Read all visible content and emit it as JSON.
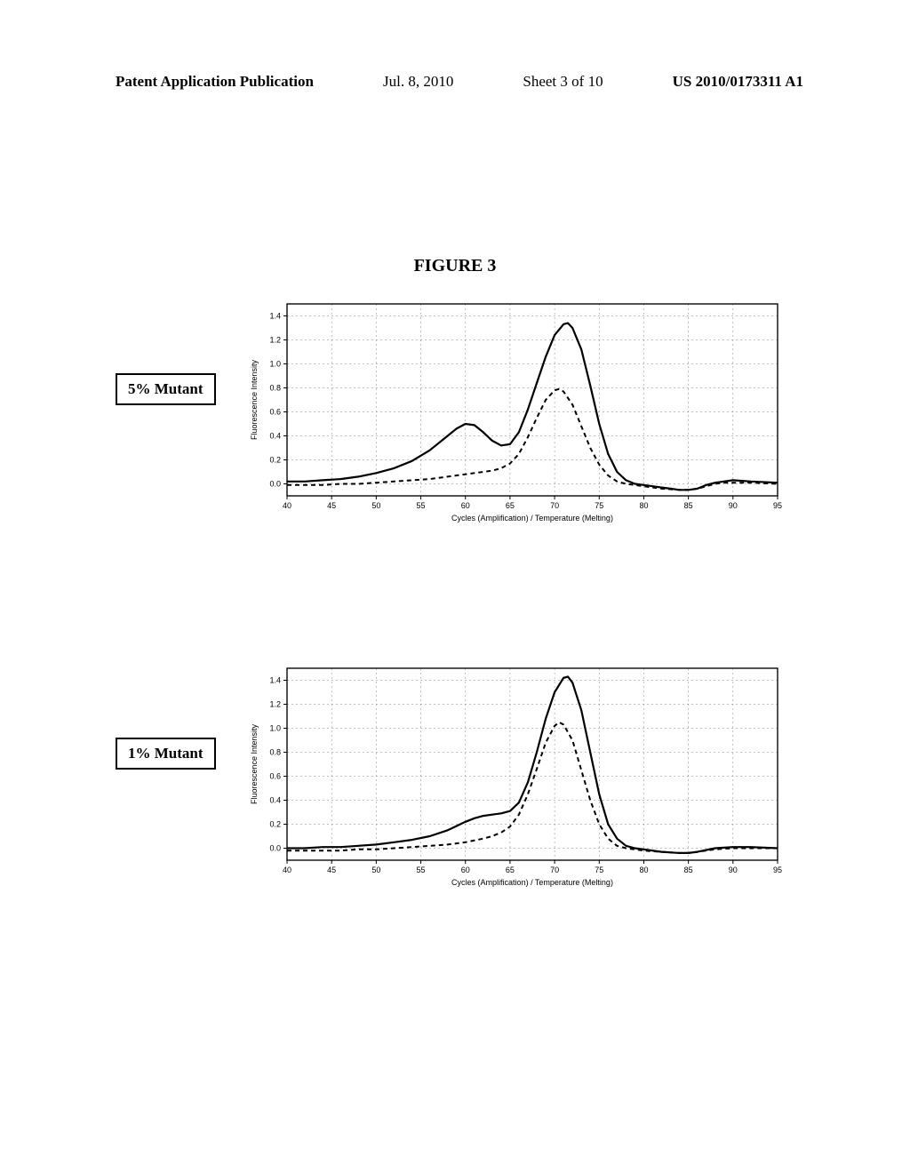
{
  "header": {
    "left": "Patent Application Publication",
    "date": "Jul. 8, 2010",
    "sheet": "Sheet 3 of 10",
    "pubno": "US 2010/0173311 A1"
  },
  "figure_title": "FIGURE 3",
  "panels": [
    {
      "box_label": "5% Mutant",
      "chart": {
        "type": "line",
        "x_label": "Cycles (Amplification) / Temperature (Melting)",
        "y_label": "Fluorescence Intensity",
        "xlim": [
          40,
          95
        ],
        "ylim": [
          -0.1,
          1.5
        ],
        "xticks": [
          40,
          45,
          50,
          55,
          60,
          65,
          70,
          75,
          80,
          85,
          90,
          95
        ],
        "yticks": [
          0.0,
          0.2,
          0.4,
          0.6,
          0.8,
          1.0,
          1.2,
          1.4
        ],
        "background": "#ffffff",
        "grid_color": "#808080",
        "border_color": "#000000",
        "series": [
          {
            "name": "solid",
            "color": "#000000",
            "dash": "none",
            "width": 2.2,
            "points": [
              [
                40,
                0.02
              ],
              [
                42,
                0.02
              ],
              [
                44,
                0.03
              ],
              [
                46,
                0.04
              ],
              [
                48,
                0.06
              ],
              [
                50,
                0.09
              ],
              [
                52,
                0.13
              ],
              [
                54,
                0.19
              ],
              [
                56,
                0.28
              ],
              [
                58,
                0.4
              ],
              [
                59,
                0.46
              ],
              [
                60,
                0.5
              ],
              [
                61,
                0.49
              ],
              [
                62,
                0.43
              ],
              [
                63,
                0.36
              ],
              [
                64,
                0.32
              ],
              [
                65,
                0.33
              ],
              [
                66,
                0.43
              ],
              [
                67,
                0.62
              ],
              [
                68,
                0.84
              ],
              [
                69,
                1.06
              ],
              [
                70,
                1.24
              ],
              [
                71,
                1.33
              ],
              [
                71.5,
                1.34
              ],
              [
                72,
                1.3
              ],
              [
                73,
                1.12
              ],
              [
                74,
                0.82
              ],
              [
                75,
                0.5
              ],
              [
                76,
                0.25
              ],
              [
                77,
                0.1
              ],
              [
                78,
                0.03
              ],
              [
                79,
                0.0
              ],
              [
                80,
                -0.01
              ],
              [
                81,
                -0.02
              ],
              [
                82,
                -0.03
              ],
              [
                83,
                -0.04
              ],
              [
                84,
                -0.05
              ],
              [
                85,
                -0.05
              ],
              [
                86,
                -0.04
              ],
              [
                87,
                -0.01
              ],
              [
                88,
                0.01
              ],
              [
                89,
                0.02
              ],
              [
                90,
                0.03
              ],
              [
                92,
                0.02
              ],
              [
                95,
                0.01
              ]
            ]
          },
          {
            "name": "dashed",
            "color": "#000000",
            "dash": "5,4",
            "width": 2.0,
            "points": [
              [
                40,
                -0.01
              ],
              [
                42,
                -0.01
              ],
              [
                44,
                -0.01
              ],
              [
                46,
                0.0
              ],
              [
                48,
                0.0
              ],
              [
                50,
                0.01
              ],
              [
                52,
                0.02
              ],
              [
                54,
                0.03
              ],
              [
                56,
                0.04
              ],
              [
                58,
                0.06
              ],
              [
                60,
                0.08
              ],
              [
                62,
                0.1
              ],
              [
                63,
                0.11
              ],
              [
                64,
                0.13
              ],
              [
                65,
                0.17
              ],
              [
                66,
                0.25
              ],
              [
                67,
                0.39
              ],
              [
                68,
                0.55
              ],
              [
                69,
                0.7
              ],
              [
                70,
                0.78
              ],
              [
                70.5,
                0.79
              ],
              [
                71,
                0.77
              ],
              [
                72,
                0.66
              ],
              [
                73,
                0.48
              ],
              [
                74,
                0.3
              ],
              [
                75,
                0.16
              ],
              [
                76,
                0.07
              ],
              [
                77,
                0.02
              ],
              [
                78,
                0.0
              ],
              [
                79,
                -0.01
              ],
              [
                80,
                -0.02
              ],
              [
                82,
                -0.04
              ],
              [
                84,
                -0.05
              ],
              [
                85,
                -0.05
              ],
              [
                86,
                -0.04
              ],
              [
                87,
                -0.02
              ],
              [
                88,
                0.0
              ],
              [
                89,
                0.01
              ],
              [
                90,
                0.01
              ],
              [
                92,
                0.01
              ],
              [
                95,
                0.0
              ]
            ]
          }
        ]
      }
    },
    {
      "box_label": "1% Mutant",
      "chart": {
        "type": "line",
        "x_label": "Cycles (Amplification) / Temperature (Melting)",
        "y_label": "Fluorescence Intensity",
        "xlim": [
          40,
          95
        ],
        "ylim": [
          -0.1,
          1.5
        ],
        "xticks": [
          40,
          45,
          50,
          55,
          60,
          65,
          70,
          75,
          80,
          85,
          90,
          95
        ],
        "yticks": [
          0.0,
          0.2,
          0.4,
          0.6,
          0.8,
          1.0,
          1.2,
          1.4
        ],
        "background": "#ffffff",
        "grid_color": "#808080",
        "border_color": "#000000",
        "series": [
          {
            "name": "solid",
            "color": "#000000",
            "dash": "none",
            "width": 2.2,
            "points": [
              [
                40,
                0.0
              ],
              [
                42,
                0.0
              ],
              [
                44,
                0.01
              ],
              [
                46,
                0.01
              ],
              [
                48,
                0.02
              ],
              [
                50,
                0.03
              ],
              [
                52,
                0.05
              ],
              [
                54,
                0.07
              ],
              [
                56,
                0.1
              ],
              [
                58,
                0.15
              ],
              [
                60,
                0.22
              ],
              [
                61,
                0.25
              ],
              [
                62,
                0.27
              ],
              [
                63,
                0.28
              ],
              [
                64,
                0.29
              ],
              [
                65,
                0.31
              ],
              [
                66,
                0.38
              ],
              [
                67,
                0.55
              ],
              [
                68,
                0.8
              ],
              [
                69,
                1.08
              ],
              [
                70,
                1.3
              ],
              [
                71,
                1.42
              ],
              [
                71.5,
                1.43
              ],
              [
                72,
                1.38
              ],
              [
                73,
                1.15
              ],
              [
                74,
                0.8
              ],
              [
                75,
                0.45
              ],
              [
                76,
                0.2
              ],
              [
                77,
                0.08
              ],
              [
                78,
                0.02
              ],
              [
                79,
                0.0
              ],
              [
                80,
                -0.01
              ],
              [
                82,
                -0.03
              ],
              [
                84,
                -0.04
              ],
              [
                85,
                -0.04
              ],
              [
                86,
                -0.03
              ],
              [
                88,
                0.0
              ],
              [
                90,
                0.01
              ],
              [
                92,
                0.01
              ],
              [
                95,
                0.0
              ]
            ]
          },
          {
            "name": "dashed",
            "color": "#000000",
            "dash": "5,4",
            "width": 2.0,
            "points": [
              [
                40,
                -0.02
              ],
              [
                42,
                -0.02
              ],
              [
                44,
                -0.02
              ],
              [
                46,
                -0.02
              ],
              [
                48,
                -0.01
              ],
              [
                50,
                -0.01
              ],
              [
                52,
                0.0
              ],
              [
                54,
                0.01
              ],
              [
                56,
                0.02
              ],
              [
                58,
                0.03
              ],
              [
                60,
                0.05
              ],
              [
                62,
                0.08
              ],
              [
                63,
                0.1
              ],
              [
                64,
                0.13
              ],
              [
                65,
                0.18
              ],
              [
                66,
                0.28
              ],
              [
                67,
                0.45
              ],
              [
                68,
                0.66
              ],
              [
                69,
                0.88
              ],
              [
                70,
                1.02
              ],
              [
                70.5,
                1.05
              ],
              [
                71,
                1.03
              ],
              [
                72,
                0.9
              ],
              [
                73,
                0.65
              ],
              [
                74,
                0.4
              ],
              [
                75,
                0.2
              ],
              [
                76,
                0.08
              ],
              [
                77,
                0.02
              ],
              [
                78,
                0.0
              ],
              [
                79,
                -0.01
              ],
              [
                80,
                -0.02
              ],
              [
                82,
                -0.03
              ],
              [
                84,
                -0.04
              ],
              [
                85,
                -0.04
              ],
              [
                86,
                -0.03
              ],
              [
                88,
                -0.01
              ],
              [
                90,
                0.0
              ],
              [
                92,
                0.0
              ],
              [
                95,
                0.0
              ]
            ]
          }
        ]
      }
    }
  ]
}
